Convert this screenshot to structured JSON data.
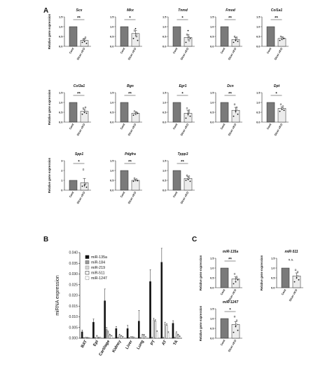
{
  "panels": {
    "a": "A",
    "b": "B",
    "c": "C"
  },
  "colors": {
    "cont": "#7a7a7a",
    "ko": "#ececec",
    "axis": "#222222"
  },
  "chart_data": [
    {
      "type": "bar",
      "panel": "A",
      "ylabel": "Relative gene expression",
      "categories": [
        "Cont",
        "Dicer cKO"
      ],
      "genes": [
        {
          "name": "Scx",
          "values": [
            1.0,
            0.3
          ],
          "err": [
            0.0,
            0.1
          ],
          "pts": [
            0.2,
            0.35,
            0.25,
            0.45,
            0.15,
            0.3
          ],
          "sig": "**",
          "ylim": [
            0,
            1.5
          ],
          "yticks": [
            "0.0",
            "0.5",
            "1.0",
            "1.5"
          ]
        },
        {
          "name": "Mkx",
          "values": [
            1.0,
            0.65
          ],
          "err": [
            0.0,
            0.15
          ],
          "pts": [
            0.4,
            0.8,
            0.9,
            0.5,
            0.3,
            0.6
          ],
          "sig": "*",
          "ylim": [
            0,
            1.5
          ],
          "yticks": [
            "0.0",
            "0.5",
            "1.0",
            "1.5"
          ]
        },
        {
          "name": "Tnmd",
          "values": [
            1.0,
            0.45
          ],
          "err": [
            0.0,
            0.15
          ],
          "pts": [
            0.2,
            0.6,
            0.8,
            0.3,
            0.4,
            0.5
          ],
          "sig": "*",
          "ylim": [
            0,
            1.5
          ],
          "yticks": [
            "0.0",
            "0.5",
            "1.0",
            "1.5"
          ]
        },
        {
          "name": "Fmod",
          "values": [
            1.0,
            0.35
          ],
          "err": [
            0.0,
            0.1
          ],
          "pts": [
            0.2,
            0.5,
            0.3,
            0.45,
            0.25,
            0.4
          ],
          "sig": "**",
          "ylim": [
            0,
            1.5
          ],
          "yticks": [
            "0.0",
            "0.5",
            "1.0",
            "1.5"
          ]
        },
        {
          "name": "Col1a1",
          "values": [
            1.0,
            0.4
          ],
          "err": [
            0.0,
            0.08
          ],
          "pts": [
            0.3,
            0.5,
            0.35,
            0.45,
            0.4,
            0.38
          ],
          "sig": "**",
          "ylim": [
            0,
            1.5
          ],
          "yticks": [
            "0.0",
            "0.5",
            "1.0",
            "1.5"
          ]
        },
        {
          "name": "Col3a1",
          "values": [
            1.0,
            0.55
          ],
          "err": [
            0.0,
            0.1
          ],
          "pts": [
            0.4,
            0.7,
            0.5,
            0.75,
            0.45,
            0.55
          ],
          "sig": "**",
          "ylim": [
            0,
            1.5
          ],
          "yticks": [
            "0.0",
            "0.5",
            "1.0",
            "1.5"
          ]
        },
        {
          "name": "Bgn",
          "values": [
            1.0,
            0.45
          ],
          "err": [
            0.0,
            0.08
          ],
          "pts": [
            0.35,
            0.55,
            0.4,
            0.5,
            0.45,
            0.42
          ],
          "sig": "**",
          "ylim": [
            0,
            1.5
          ],
          "yticks": [
            "0.0",
            "0.5",
            "1.0",
            "1.5"
          ]
        },
        {
          "name": "Egr1",
          "values": [
            1.0,
            0.45
          ],
          "err": [
            0.0,
            0.15
          ],
          "pts": [
            0.2,
            0.7,
            0.4,
            0.6,
            0.3,
            0.5
          ],
          "sig": "*",
          "ylim": [
            0,
            1.5
          ],
          "yticks": [
            "0.0",
            "0.5",
            "1.0",
            "1.5"
          ]
        },
        {
          "name": "Dcn",
          "values": [
            1.0,
            0.6
          ],
          "err": [
            0.0,
            0.15
          ],
          "pts": [
            0.3,
            0.9,
            0.55,
            0.75,
            0.4,
            0.65
          ],
          "sig": "**",
          "ylim": [
            0,
            1.5
          ],
          "yticks": [
            "0.0",
            "0.5",
            "1.0",
            "1.5"
          ]
        },
        {
          "name": "Dpt",
          "values": [
            1.0,
            0.7
          ],
          "err": [
            0.0,
            0.08
          ],
          "pts": [
            0.55,
            0.9,
            0.65,
            0.8,
            0.6,
            0.7
          ],
          "sig": "*",
          "ylim": [
            0,
            1.5
          ],
          "yticks": [
            "0.0",
            "0.5",
            "1.0",
            "1.5"
          ]
        },
        {
          "name": "Spp1",
          "values": [
            1.0,
            0.75
          ],
          "err": [
            0.0,
            0.45
          ],
          "pts": [
            0.4,
            2.1,
            0.5,
            0.6,
            0.3,
            0.7
          ],
          "sig": "*",
          "ylim": [
            0,
            3
          ],
          "yticks": [
            "0",
            "1",
            "2",
            "3"
          ]
        },
        {
          "name": "Pdgfra",
          "values": [
            1.0,
            0.5
          ],
          "err": [
            0.0,
            0.05
          ],
          "pts": [
            0.45,
            0.6,
            0.5,
            0.55,
            0.48,
            0.5
          ],
          "sig": "**",
          "ylim": [
            0,
            1.5
          ],
          "yticks": [
            "0.0",
            "0.5",
            "1.0",
            "1.5"
          ]
        },
        {
          "name": "Tppp3",
          "values": [
            1.0,
            0.6
          ],
          "err": [
            0.0,
            0.1
          ],
          "pts": [
            0.5,
            0.75,
            0.55,
            0.7,
            0.45,
            0.6
          ],
          "sig": "**",
          "ylim": [
            0,
            1.5
          ],
          "yticks": [
            "0.0",
            "0.5",
            "1.0",
            "1.5"
          ]
        }
      ]
    },
    {
      "type": "bar",
      "panel": "B",
      "ylabel": "miRNA expression",
      "ylim": [
        0,
        0.04
      ],
      "yticks": [
        "0.000",
        "0.005",
        "0.010",
        "0.015",
        "0.020",
        "0.025",
        "0.030",
        "0.035",
        "0.040"
      ],
      "categories": [
        "BAT",
        "Epi",
        "Cartilage",
        "Kidney",
        "Liver",
        "Lung",
        "PT",
        "AT",
        "TA"
      ],
      "series": [
        {
          "name": "miR-135a",
          "values": [
            0.003,
            0.0075,
            0.0175,
            0.0045,
            0.0045,
            0.008,
            0.0265,
            0.0355,
            0.007
          ],
          "err": [
            0.0008,
            0.0015,
            0.0055,
            0.001,
            0.0015,
            0.005,
            0.0055,
            0.0065,
            0.0012
          ]
        },
        {
          "name": "miR-184",
          "values": [
            0.0002,
            0.0002,
            0.004,
            0.0003,
            0.0002,
            0.0002,
            0.0003,
            0.0003,
            0.0003
          ],
          "err": [
            0.0001,
            0.0001,
            0.001,
            0.0001,
            0.0001,
            0.0001,
            0.0001,
            0.0001,
            0.0001
          ]
        },
        {
          "name": "miR-219",
          "values": [
            0.0003,
            0.001,
            0.0025,
            0.0015,
            0.0005,
            0.0015,
            0.0085,
            0.0065,
            0.0025
          ],
          "err": [
            0.0001,
            0.0003,
            0.0008,
            0.0004,
            0.0002,
            0.0004,
            0.0008,
            0.001,
            0.0005
          ]
        },
        {
          "name": "miR-511",
          "values": [
            0.0003,
            0.0003,
            0.0015,
            0.001,
            0.0005,
            0.0015,
            0.008,
            0.006,
            0.0015
          ],
          "err": [
            0.0001,
            0.0001,
            0.0004,
            0.0003,
            0.0002,
            0.0003,
            0.0006,
            0.0008,
            0.0004
          ]
        },
        {
          "name": "miR-1247",
          "values": [
            0.0002,
            0.0003,
            0.001,
            0.0005,
            0.0003,
            0.0005,
            0.003,
            0.0025,
            0.0008
          ],
          "err": [
            0.0001,
            0.0001,
            0.0003,
            0.0002,
            0.0001,
            0.0002,
            0.0005,
            0.0005,
            0.0002
          ]
        }
      ],
      "legend": "top-left"
    },
    {
      "type": "bar",
      "panel": "C",
      "ylabel": "Relative gene expression",
      "categories": [
        "Cont",
        "Dicer cKO"
      ],
      "genes": [
        {
          "name": "miR-135a",
          "values": [
            1.0,
            0.45
          ],
          "err": [
            0.0,
            0.1
          ],
          "pts": [
            0.2,
            0.7,
            0.3,
            0.55,
            0.4,
            0.5
          ],
          "sig": "**",
          "ylim": [
            0,
            1.5
          ],
          "yticks": [
            "0.0",
            "0.5",
            "1.0",
            "1.5"
          ]
        },
        {
          "name": "miR-511",
          "values": [
            1.0,
            0.6
          ],
          "err": [
            0.0,
            0.15
          ],
          "pts": [
            0.3,
            0.9,
            0.5,
            0.8,
            0.4,
            0.6
          ],
          "sig": "n.s.",
          "ylim": [
            0,
            1.5
          ],
          "yticks": [
            "0.0",
            "0.5",
            "1.0",
            "1.5"
          ]
        },
        {
          "name": "miR-1247",
          "values": [
            1.0,
            0.7
          ],
          "err": [
            0.0,
            0.15
          ],
          "pts": [
            0.3,
            1.1,
            0.6,
            0.9,
            0.4,
            0.7
          ],
          "sig": "*",
          "ylim": [
            0,
            1.5
          ],
          "yticks": [
            "0.0",
            "0.5",
            "1.0",
            "1.5"
          ]
        }
      ]
    }
  ]
}
